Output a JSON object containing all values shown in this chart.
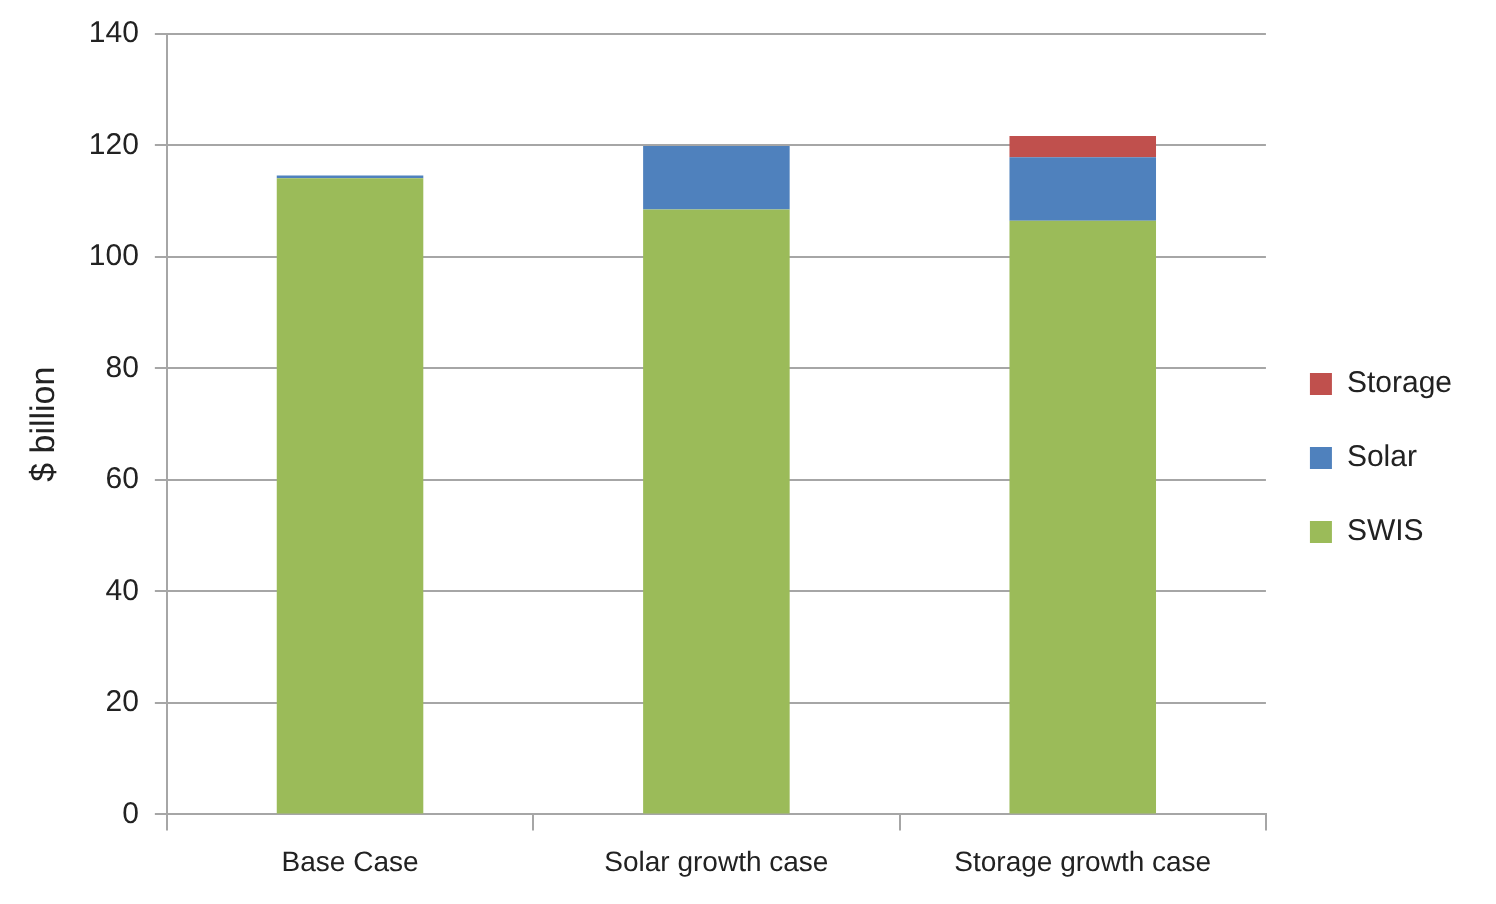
{
  "chart_data": {
    "type": "bar",
    "stacked": true,
    "ylabel": "$ billion",
    "categories": [
      "Base Case",
      "Solar growth case",
      "Storage growth case"
    ],
    "series": [
      {
        "name": "SWIS",
        "color": "#9bbb59",
        "values": [
          114.1,
          108.5,
          106.5
        ]
      },
      {
        "name": "Solar",
        "color": "#4f81bd",
        "values": [
          0.5,
          11.4,
          11.4
        ]
      },
      {
        "name": "Storage",
        "color": "#c0504d",
        "values": [
          0,
          0,
          3.8
        ]
      }
    ],
    "ylim": [
      0,
      140
    ],
    "yticks": [
      0,
      20,
      40,
      60,
      80,
      100,
      120,
      140
    ],
    "grid": "y",
    "legend": "right"
  }
}
